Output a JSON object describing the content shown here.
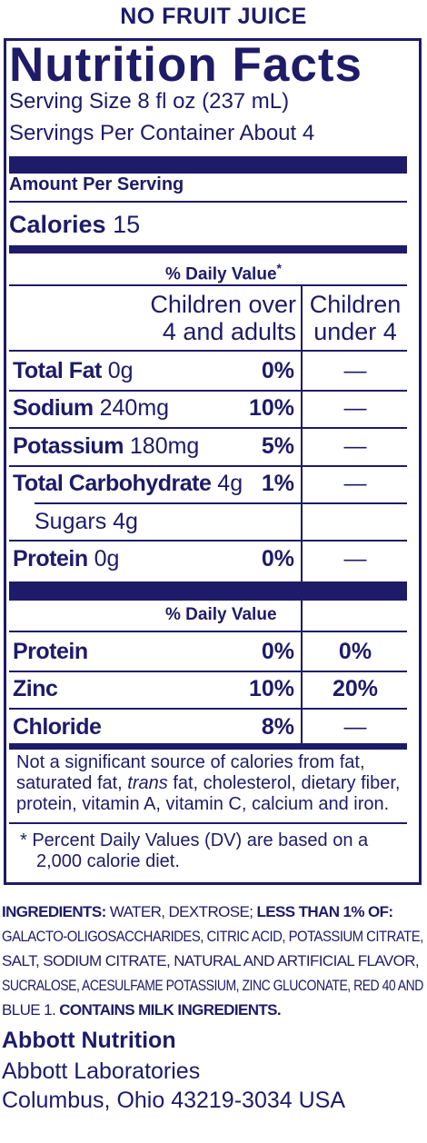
{
  "header": {
    "label": "NO FRUIT JUICE"
  },
  "panel": {
    "title": "Nutrition Facts",
    "serving_size": "Serving Size 8 fl oz (237 mL)",
    "servings_per_container": "Servings Per Container About 4",
    "amount_per_serving": "Amount Per Serving",
    "calories_label": "Calories",
    "calories_value": "15",
    "dv_heading": "% Daily Value",
    "dv_asterisk": "*",
    "col1_line1": "Children over",
    "col1_line2": "4 and adults",
    "col2_line1": "Children",
    "col2_line2": "under 4",
    "rows": [
      {
        "name": "Total Fat",
        "amount": "0g",
        "dv": "0%",
        "dv_u4": "—"
      },
      {
        "name": "Sodium",
        "amount": "240mg",
        "dv": "10%",
        "dv_u4": "—"
      },
      {
        "name": "Potassium",
        "amount": "180mg",
        "dv": "5%",
        "dv_u4": "—"
      },
      {
        "name": "Total Carbohydrate",
        "amount": "4g",
        "dv": "1%",
        "dv_u4": "—"
      },
      {
        "name": "Sugars 4g",
        "amount": "",
        "dv": "",
        "dv_u4": ""
      },
      {
        "name": "Protein",
        "amount": "0g",
        "dv": "0%",
        "dv_u4": "—"
      }
    ],
    "dv_heading2": "% Daily Value",
    "rows2": [
      {
        "name": "Protein",
        "dv": "0%",
        "dv_u4": "0%"
      },
      {
        "name": "Zinc",
        "dv": "10%",
        "dv_u4": "20%"
      },
      {
        "name": "Chloride",
        "dv": "8%",
        "dv_u4": "—"
      }
    ],
    "not_significant_1": "Not a significant source of calories from fat,",
    "not_significant_2a": "saturated fat, ",
    "not_significant_2b": "trans",
    "not_significant_2c": " fat, cholesterol, dietary fiber,",
    "not_significant_3": "protein, vitamin A, vitamin C, calcium and iron.",
    "footnote_1": "* Percent Daily Values (DV) are based on a",
    "footnote_2": "2,000 calorie diet."
  },
  "ingredients": {
    "label": "INGREDIENTS:",
    "part1": " WATER, DEXTROSE; ",
    "less_than": "LESS THAN 1% OF:",
    "line2": "GALACTO-OLIGOSACCHARIDES, CITRIC ACID, POTASSIUM CITRATE,",
    "line3": "SALT, SODIUM CITRATE, NATURAL AND ARTIFICIAL FLAVOR,",
    "line4": "SUCRALOSE, ACESULFAME POTASSIUM, ZINC GLUCONATE, RED 40 AND",
    "line5a": "BLUE 1. ",
    "contains": "CONTAINS MILK INGREDIENTS."
  },
  "manufacturer": {
    "name": "Abbott Nutrition",
    "company": "Abbott Laboratories",
    "address": "Columbus, Ohio 43219-3034 USA"
  },
  "colors": {
    "ink": "#1e1b68",
    "background": "#ffffff"
  }
}
